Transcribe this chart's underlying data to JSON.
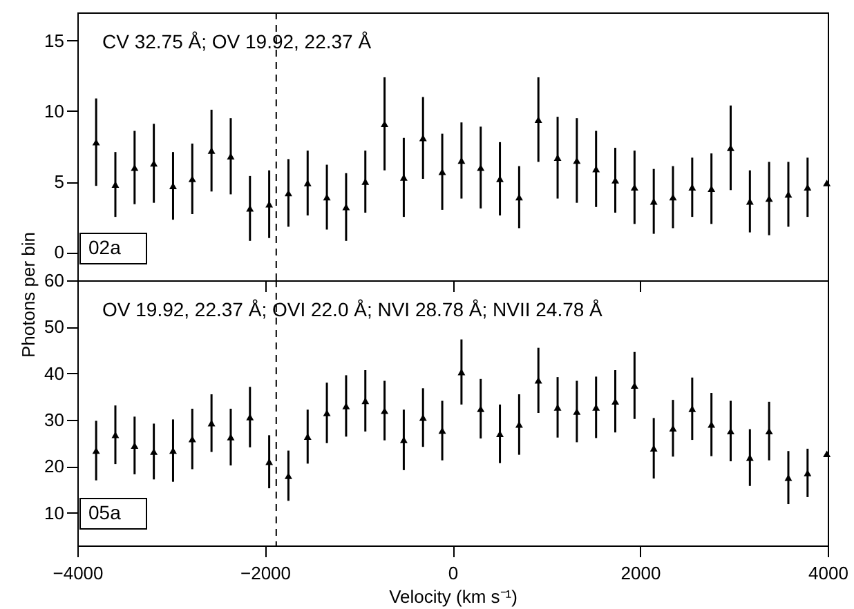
{
  "chart_data": [
    {
      "type": "scatter",
      "ylabel": "Photons per bin",
      "annotations": [
        "CV 32.75 Å; OV 19.92, 22.37 Å",
        "02a"
      ],
      "x": [
        -3800,
        -3595,
        -3390,
        -3185,
        -2980,
        -2775,
        -2570,
        -2365,
        -2160,
        -1955,
        -1750,
        -1545,
        -1340,
        -1135,
        -930,
        -725,
        -520,
        -315,
        -110,
        95,
        300,
        505,
        710,
        915,
        1120,
        1325,
        1530,
        1735,
        1940,
        2145,
        2350,
        2555,
        2760,
        2965,
        3170,
        3375,
        3580,
        3785,
        3990
      ],
      "series": [
        {
          "color": "#000000",
          "values": [
            7.8,
            4.8,
            6.0,
            6.3,
            4.7,
            5.2,
            7.2,
            6.8,
            3.1,
            3.4,
            4.2,
            4.9,
            3.9,
            3.2,
            5.0,
            9.1,
            5.3,
            8.1,
            5.7,
            6.5,
            6.0,
            5.2,
            3.9,
            9.4,
            6.7,
            6.5,
            5.9,
            5.1,
            4.6,
            3.6,
            3.9,
            4.6,
            4.5,
            7.4,
            3.6,
            3.8,
            4.1,
            4.6,
            4.9
          ],
          "errors": [
            3.1,
            2.3,
            2.6,
            2.8,
            2.4,
            2.5,
            2.9,
            2.7,
            2.3,
            2.4,
            2.4,
            2.3,
            2.3,
            2.4,
            2.2,
            3.3,
            2.8,
            2.9,
            2.7,
            2.7,
            2.9,
            2.6,
            2.2,
            3.0,
            2.9,
            3.0,
            2.7,
            2.3,
            2.6,
            2.3,
            2.2,
            2.1,
            2.5,
            3.0,
            2.2,
            2.6,
            2.3,
            2.1,
            null
          ]
        }
      ],
      "xlim": [
        -4000,
        4000
      ],
      "xticks": [
        -4000,
        -2000,
        0,
        2000,
        4000
      ],
      "ylim": [
        -2,
        17
      ],
      "yticks": [
        0,
        5,
        10,
        15
      ],
      "tick_labels": "y",
      "marker": "triangle",
      "ref_lines": [
        {
          "axis": "x",
          "value": -1880,
          "line_style": "dashed"
        }
      ]
    },
    {
      "type": "scatter",
      "xlabel": "Velocity (km s⁻¹)",
      "annotations": [
        "OV 19.92, 22.37 Å; OVI 22.0 Å; NVI 28.78 Å; NVII 24.78 Å",
        "05a"
      ],
      "x": [
        -3800,
        -3595,
        -3390,
        -3185,
        -2980,
        -2775,
        -2570,
        -2365,
        -2160,
        -1955,
        -1750,
        -1545,
        -1340,
        -1135,
        -930,
        -725,
        -520,
        -315,
        -110,
        95,
        300,
        505,
        710,
        915,
        1120,
        1325,
        1530,
        1735,
        1940,
        2145,
        2350,
        2555,
        2760,
        2965,
        3170,
        3375,
        3580,
        3785,
        3990
      ],
      "series": [
        {
          "color": "#000000",
          "values": [
            23.4,
            26.8,
            24.5,
            23.2,
            23.4,
            25.9,
            29.3,
            26.3,
            30.6,
            21.0,
            18.0,
            26.4,
            31.5,
            33.0,
            34.1,
            32.0,
            25.7,
            30.5,
            27.7,
            40.3,
            32.4,
            27.0,
            29.0,
            38.5,
            32.7,
            31.8,
            32.7,
            34.0,
            37.4,
            23.9,
            28.2,
            32.4,
            29.0,
            27.6,
            21.9,
            27.6,
            17.6,
            18.6,
            22.7
          ],
          "errors": [
            6.4,
            6.3,
            6.2,
            6.0,
            6.7,
            6.5,
            6.2,
            6.1,
            6.5,
            5.7,
            5.4,
            5.8,
            6.5,
            6.6,
            6.6,
            6.4,
            6.5,
            6.3,
            6.4,
            7.0,
            6.4,
            6.3,
            6.5,
            7.0,
            6.5,
            6.6,
            6.6,
            6.7,
            7.2,
            6.5,
            6.1,
            6.7,
            6.8,
            6.5,
            6.1,
            6.3,
            5.7,
            5.2,
            null
          ]
        }
      ],
      "xlim": [
        -4000,
        4000
      ],
      "xticks": [
        -4000,
        -2000,
        0,
        2000,
        4000
      ],
      "ylim": [
        3,
        60
      ],
      "yticks": [
        10,
        20,
        30,
        40,
        50,
        60
      ],
      "marker": "triangle",
      "ref_lines": [
        {
          "axis": "x",
          "value": -1880,
          "line_style": "dashed"
        }
      ]
    }
  ]
}
